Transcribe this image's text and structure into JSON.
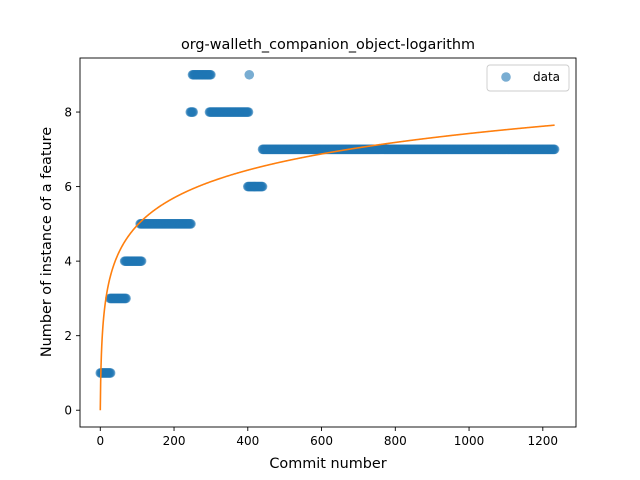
{
  "chart_data": {
    "type": "scatter",
    "title": "org-walleth_companion_object-logarithm",
    "xlabel": "Commit number",
    "ylabel": "Number of instance of a feature",
    "xlim": [
      -55,
      1290
    ],
    "ylim": [
      -0.45,
      9.45
    ],
    "xticks": [
      0,
      200,
      400,
      600,
      800,
      1000,
      1200
    ],
    "yticks": [
      0,
      2,
      4,
      6,
      8
    ],
    "grid": false,
    "legend": {
      "position": "top-right",
      "entries": [
        "data"
      ]
    },
    "colors": {
      "data": "#1f77b4",
      "fit": "#ff7f0e"
    },
    "series": [
      {
        "name": "data",
        "kind": "scatter",
        "segments": [
          {
            "x_from": 0,
            "x_to": 28,
            "step": 2,
            "y": 1
          },
          {
            "x_from": 26,
            "x_to": 70,
            "step": 2,
            "y": 3
          },
          {
            "x_from": 66,
            "x_to": 112,
            "step": 2,
            "y": 4
          },
          {
            "x_from": 108,
            "x_to": 246,
            "step": 2,
            "y": 5
          },
          {
            "x_from": 244,
            "x_to": 252,
            "step": 2,
            "y": 8
          },
          {
            "x_from": 250,
            "x_to": 300,
            "step": 2,
            "y": 9
          },
          {
            "x_from": 296,
            "x_to": 402,
            "step": 2,
            "y": 8
          },
          {
            "x_from": 404,
            "x_to": 404,
            "step": 2,
            "y": 9
          },
          {
            "x_from": 400,
            "x_to": 440,
            "step": 2,
            "y": 6
          },
          {
            "x_from": 440,
            "x_to": 1232,
            "step": 2,
            "y": 7
          }
        ]
      },
      {
        "name": "fit",
        "kind": "line",
        "formula": "a*ln(x+1)",
        "a": 1.0746,
        "x_from": 0,
        "x_to": 1232
      }
    ]
  }
}
